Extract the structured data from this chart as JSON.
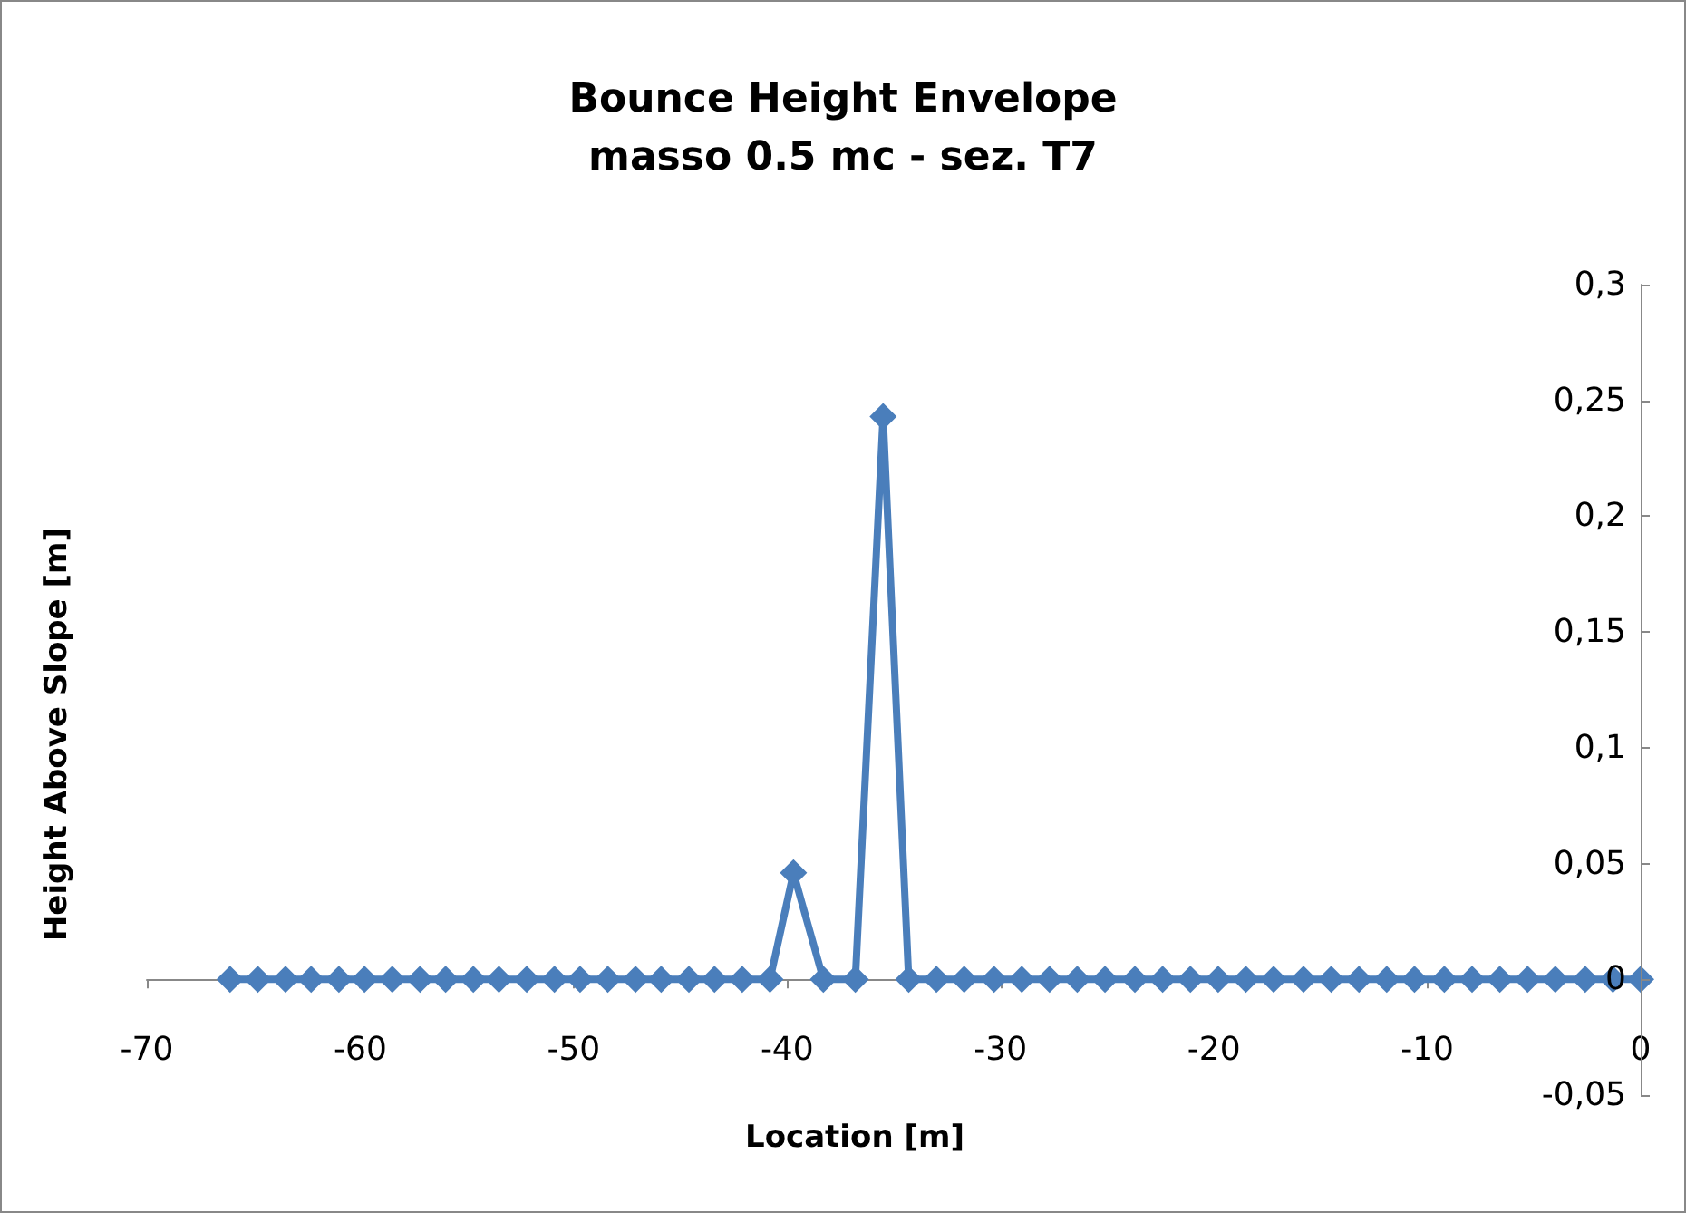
{
  "chart_data": {
    "type": "line",
    "title": "Bounce Height Envelope",
    "subtitle": "masso 0.5 mc - sez. T7",
    "xlabel": "Location [m]",
    "ylabel": "Height Above Slope [m]",
    "marker": "diamond",
    "grid": false,
    "xlim": [
      -70,
      0
    ],
    "xticks": [
      -70,
      -60,
      -50,
      -40,
      -30,
      -20,
      -10,
      0
    ],
    "ylim": [
      -0.05,
      0.3
    ],
    "yticks": [
      {
        "value": -0.05,
        "label": "-0,05"
      },
      {
        "value": 0,
        "label": "0"
      },
      {
        "value": 0.05,
        "label": "0,05"
      },
      {
        "value": 0.1,
        "label": "0,1"
      },
      {
        "value": 0.15,
        "label": "0,15"
      },
      {
        "value": 0.2,
        "label": "0,2"
      },
      {
        "value": 0.25,
        "label": "0,25"
      },
      {
        "value": 0.3,
        "label": "0,3"
      }
    ],
    "x": [
      -66.1,
      -64.8,
      -63.5,
      -62.3,
      -61.0,
      -59.8,
      -58.5,
      -57.2,
      -56.0,
      -54.7,
      -53.5,
      -52.2,
      -50.9,
      -49.7,
      -48.4,
      -47.1,
      -45.9,
      -44.6,
      -43.4,
      -42.1,
      -40.8,
      -39.7,
      -38.3,
      -36.8,
      -35.5,
      -34.3,
      -33.0,
      -31.7,
      -30.3,
      -29.0,
      -27.7,
      -26.4,
      -25.1,
      -23.7,
      -22.4,
      -21.1,
      -19.8,
      -18.5,
      -17.2,
      -15.8,
      -14.5,
      -13.2,
      -11.9,
      -10.6,
      -9.2,
      -7.9,
      -6.6,
      -5.3,
      -4.0,
      -2.6,
      -1.3,
      0
    ],
    "series": [
      {
        "color": "#4a7ebb",
        "values": [
          0,
          0,
          0,
          0,
          0,
          0,
          0,
          0,
          0,
          0,
          0,
          0,
          0,
          0,
          0,
          0,
          0,
          0,
          0,
          0,
          0,
          0.046,
          0,
          0,
          0.243,
          0,
          0,
          0,
          0,
          0,
          0,
          0,
          0,
          0,
          0,
          0,
          0,
          0,
          0,
          0,
          0,
          0,
          0,
          0,
          0,
          0,
          0,
          0,
          0,
          0,
          0,
          0
        ]
      }
    ]
  }
}
